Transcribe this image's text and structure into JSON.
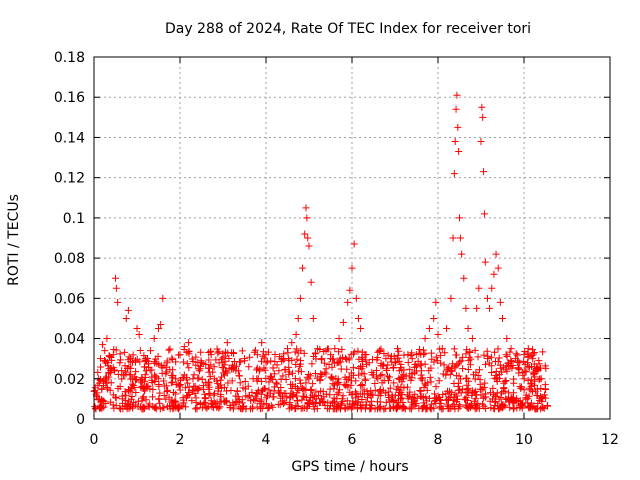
{
  "chart_data": {
    "type": "scatter",
    "title": "Day 288 of 2024, Rate Of TEC Index for receiver tori",
    "xlabel": "GPS time / hours",
    "ylabel": "ROTI / TECUs",
    "xlim": [
      0,
      12
    ],
    "ylim": [
      0,
      0.18
    ],
    "x_ticks": [
      0,
      2,
      4,
      6,
      8,
      10,
      12
    ],
    "x_tick_labels": [
      "0",
      "2",
      "4",
      "6",
      "8",
      "10",
      "12"
    ],
    "y_ticks": [
      0,
      0.02,
      0.04,
      0.06,
      0.08,
      0.1,
      0.12,
      0.14,
      0.16,
      0.18
    ],
    "y_tick_labels": [
      "0",
      "0.02",
      "0.04",
      "0.06",
      "0.08",
      "0.1",
      "0.12",
      "0.14",
      "0.16",
      "0.18"
    ],
    "grid": true,
    "marker": "+",
    "marker_color": "#ff0000",
    "series": [
      {
        "name": "ROTI",
        "points": [
          [
            0.05,
            0.012
          ],
          [
            0.1,
            0.02
          ],
          [
            0.15,
            0.03
          ],
          [
            0.2,
            0.037
          ],
          [
            0.25,
            0.034
          ],
          [
            0.3,
            0.04
          ],
          [
            0.35,
            0.025
          ],
          [
            0.4,
            0.018
          ],
          [
            0.45,
            0.032
          ],
          [
            0.5,
            0.07
          ],
          [
            0.52,
            0.065
          ],
          [
            0.55,
            0.058
          ],
          [
            0.6,
            0.028
          ],
          [
            0.7,
            0.022
          ],
          [
            0.75,
            0.05
          ],
          [
            0.8,
            0.054
          ],
          [
            0.85,
            0.03
          ],
          [
            0.9,
            0.02
          ],
          [
            1.0,
            0.045
          ],
          [
            1.05,
            0.042
          ],
          [
            1.1,
            0.018
          ],
          [
            1.2,
            0.03
          ],
          [
            1.3,
            0.015
          ],
          [
            1.4,
            0.04
          ],
          [
            1.5,
            0.045
          ],
          [
            1.55,
            0.047
          ],
          [
            1.6,
            0.06
          ],
          [
            1.7,
            0.028
          ],
          [
            1.8,
            0.018
          ],
          [
            1.9,
            0.02
          ],
          [
            2.0,
            0.032
          ],
          [
            2.1,
            0.036
          ],
          [
            2.2,
            0.038
          ],
          [
            2.3,
            0.02
          ],
          [
            2.4,
            0.015
          ],
          [
            2.5,
            0.028
          ],
          [
            2.6,
            0.018
          ],
          [
            2.7,
            0.012
          ],
          [
            2.8,
            0.02
          ],
          [
            2.9,
            0.016
          ],
          [
            3.0,
            0.028
          ],
          [
            3.1,
            0.038
          ],
          [
            3.2,
            0.033
          ],
          [
            3.3,
            0.024
          ],
          [
            3.4,
            0.018
          ],
          [
            3.5,
            0.03
          ],
          [
            3.6,
            0.026
          ],
          [
            3.7,
            0.02
          ],
          [
            3.8,
            0.032
          ],
          [
            3.9,
            0.038
          ],
          [
            4.0,
            0.028
          ],
          [
            4.1,
            0.02
          ],
          [
            4.2,
            0.016
          ],
          [
            4.3,
            0.024
          ],
          [
            4.4,
            0.03
          ],
          [
            4.5,
            0.035
          ],
          [
            4.6,
            0.038
          ],
          [
            4.7,
            0.042
          ],
          [
            4.75,
            0.05
          ],
          [
            4.8,
            0.06
          ],
          [
            4.85,
            0.075
          ],
          [
            4.9,
            0.092
          ],
          [
            4.93,
            0.105
          ],
          [
            4.95,
            0.1
          ],
          [
            4.97,
            0.09
          ],
          [
            5.0,
            0.086
          ],
          [
            5.05,
            0.068
          ],
          [
            5.1,
            0.05
          ],
          [
            5.2,
            0.035
          ],
          [
            5.3,
            0.03
          ],
          [
            5.4,
            0.025
          ],
          [
            5.5,
            0.03
          ],
          [
            5.6,
            0.035
          ],
          [
            5.7,
            0.04
          ],
          [
            5.8,
            0.048
          ],
          [
            5.9,
            0.058
          ],
          [
            5.95,
            0.064
          ],
          [
            6.0,
            0.075
          ],
          [
            6.05,
            0.087
          ],
          [
            6.1,
            0.06
          ],
          [
            6.15,
            0.05
          ],
          [
            6.2,
            0.045
          ],
          [
            6.3,
            0.032
          ],
          [
            6.4,
            0.028
          ],
          [
            6.5,
            0.022
          ],
          [
            6.6,
            0.02
          ],
          [
            6.7,
            0.018
          ],
          [
            6.8,
            0.025
          ],
          [
            6.9,
            0.03
          ],
          [
            7.0,
            0.028
          ],
          [
            7.1,
            0.024
          ],
          [
            7.2,
            0.022
          ],
          [
            7.3,
            0.032
          ],
          [
            7.4,
            0.03
          ],
          [
            7.5,
            0.026
          ],
          [
            7.6,
            0.032
          ],
          [
            7.7,
            0.04
          ],
          [
            7.8,
            0.045
          ],
          [
            7.9,
            0.05
          ],
          [
            7.95,
            0.058
          ],
          [
            8.0,
            0.042
          ],
          [
            8.1,
            0.035
          ],
          [
            8.2,
            0.045
          ],
          [
            8.3,
            0.06
          ],
          [
            8.35,
            0.09
          ],
          [
            8.38,
            0.122
          ],
          [
            8.4,
            0.138
          ],
          [
            8.42,
            0.154
          ],
          [
            8.44,
            0.161
          ],
          [
            8.46,
            0.145
          ],
          [
            8.48,
            0.133
          ],
          [
            8.5,
            0.1
          ],
          [
            8.52,
            0.09
          ],
          [
            8.55,
            0.082
          ],
          [
            8.6,
            0.07
          ],
          [
            8.65,
            0.055
          ],
          [
            8.7,
            0.045
          ],
          [
            8.8,
            0.04
          ],
          [
            8.9,
            0.055
          ],
          [
            8.95,
            0.065
          ],
          [
            9.0,
            0.138
          ],
          [
            9.02,
            0.155
          ],
          [
            9.04,
            0.15
          ],
          [
            9.06,
            0.123
          ],
          [
            9.08,
            0.102
          ],
          [
            9.1,
            0.078
          ],
          [
            9.15,
            0.06
          ],
          [
            9.2,
            0.055
          ],
          [
            9.25,
            0.065
          ],
          [
            9.3,
            0.072
          ],
          [
            9.35,
            0.082
          ],
          [
            9.4,
            0.075
          ],
          [
            9.45,
            0.058
          ],
          [
            9.5,
            0.05
          ],
          [
            9.6,
            0.04
          ],
          [
            9.7,
            0.035
          ],
          [
            9.8,
            0.03
          ],
          [
            9.9,
            0.028
          ],
          [
            10.0,
            0.032
          ],
          [
            10.1,
            0.035
          ],
          [
            10.2,
            0.03
          ],
          [
            10.3,
            0.025
          ],
          [
            10.4,
            0.02
          ],
          [
            10.5,
            0.015
          ]
        ],
        "band": {
          "x_range": [
            0,
            10.55
          ],
          "typical_min": 0.005,
          "typical_max": 0.035
        }
      }
    ]
  }
}
